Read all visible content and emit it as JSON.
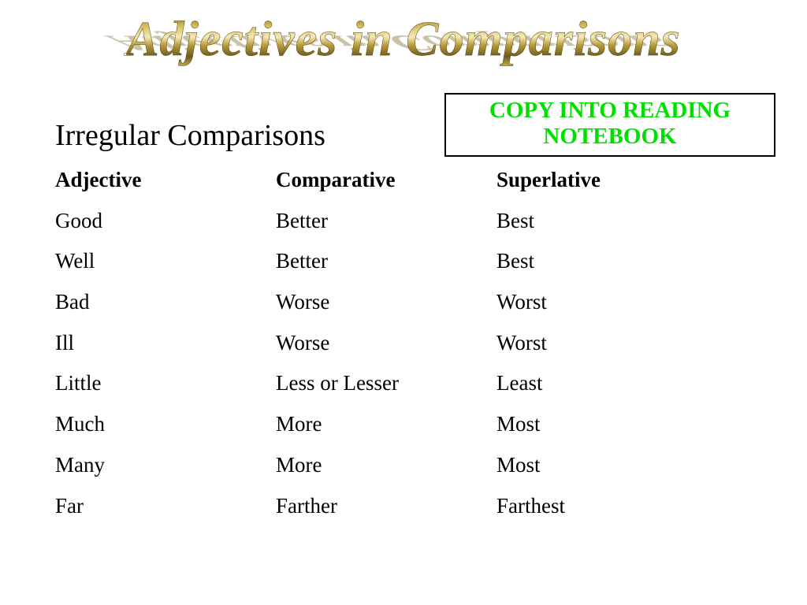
{
  "title": "Adjectives in Comparisons",
  "notebox": {
    "line1": "COPY INTO READING",
    "line2": "NOTEBOOK",
    "text_color": "#00e000",
    "border_color": "#000000"
  },
  "subtitle": "Irregular Comparisons",
  "table": {
    "columns": [
      "Adjective",
      "Comparative",
      "Superlative"
    ],
    "header_fontweight": "bold",
    "cell_fontsize": 27,
    "rows": [
      [
        "Good",
        "Better",
        "Best"
      ],
      [
        "Well",
        "Better",
        "Best"
      ],
      [
        "Bad",
        "Worse",
        "Worst"
      ],
      [
        "Ill",
        "Worse",
        "Worst"
      ],
      [
        "Little",
        "Less or Lesser",
        "Least"
      ],
      [
        "Much",
        "More",
        "Most"
      ],
      [
        "Many",
        "More",
        "Most"
      ],
      [
        "Far",
        "Farther",
        "Farthest"
      ]
    ]
  },
  "style": {
    "background_color": "#ffffff",
    "title_fontsize": 62,
    "subtitle_fontsize": 38,
    "wordart_gradient": [
      "#6b5a20",
      "#d4bc5a",
      "#f5e9b8",
      "#b89a3a",
      "#6b5a20",
      "#d4bc5a"
    ],
    "font_family": "Times New Roman"
  }
}
